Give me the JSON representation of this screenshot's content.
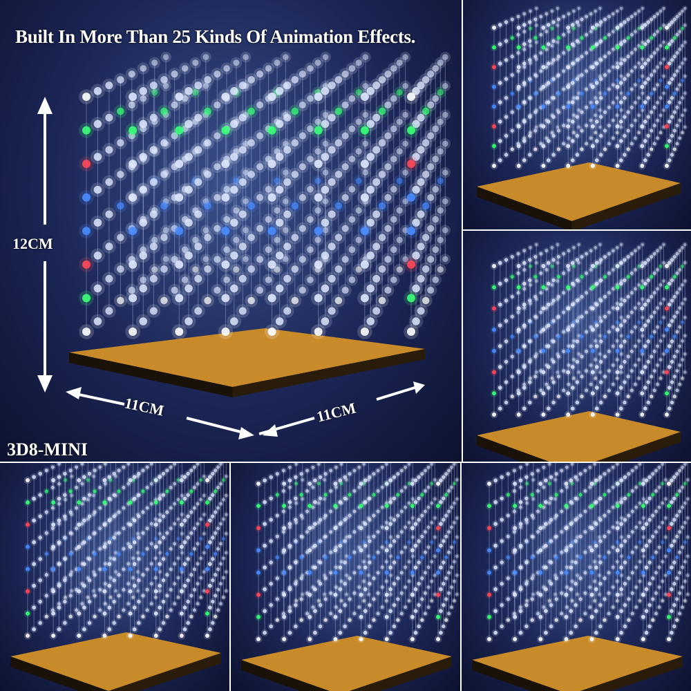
{
  "headline": "Built In More Than 25 Kinds Of Animation Effects.",
  "dimensions": {
    "height": "12CM",
    "width_left": "11CM",
    "width_right": "11CM"
  },
  "model": "3D8-MINI",
  "colors": {
    "background": "#1c2656",
    "base": "#c98a2a",
    "led_white": "#ffffff",
    "led_green": "#3cff7a",
    "led_red": "#ff4a5a",
    "led_blue": "#4a8cff"
  },
  "panels": [
    {
      "id": "main",
      "description_icon": "led-cube-8x8x8",
      "row_colors": [
        "white",
        "green",
        "red",
        "blue",
        "blue",
        "red",
        "green",
        "white"
      ]
    },
    {
      "id": "r1",
      "description_icon": "led-cube-8x8x8",
      "row_colors": [
        "white",
        "green",
        "red",
        "blue",
        "blue",
        "red",
        "green",
        "white"
      ]
    },
    {
      "id": "r2",
      "description_icon": "led-cube-8x8x8",
      "row_colors": [
        "white",
        "green",
        "red",
        "blue",
        "blue",
        "red",
        "green",
        "white"
      ]
    },
    {
      "id": "b1",
      "description_icon": "led-cube-8x8x8",
      "row_colors": [
        "white",
        "green",
        "red",
        "blue",
        "blue",
        "red",
        "green",
        "white"
      ]
    },
    {
      "id": "b2",
      "description_icon": "led-cube-8x8x8",
      "row_colors": [
        "white",
        "green",
        "red",
        "blue",
        "blue",
        "red",
        "green",
        "white"
      ]
    },
    {
      "id": "b3",
      "description_icon": "led-cube-8x8x8",
      "row_colors": [
        "white",
        "green",
        "red",
        "blue",
        "blue",
        "red",
        "green",
        "white"
      ]
    }
  ]
}
